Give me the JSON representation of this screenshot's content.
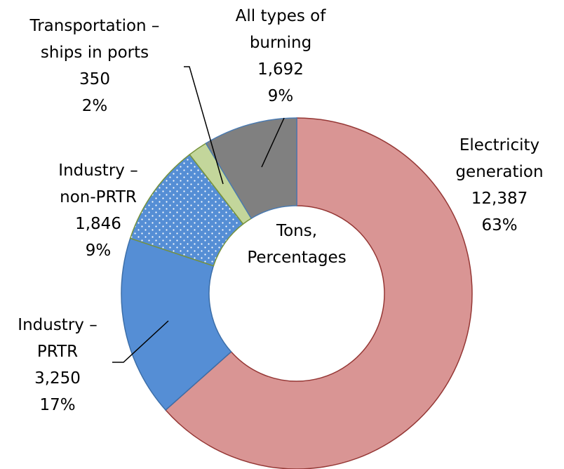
{
  "chart_data": {
    "type": "donut",
    "center_label": "Tons,\nPercentages",
    "categories": [
      "Electricity\ngeneration",
      "Industry –\nPRTR",
      "Industry –\nnon-PRTR",
      "Transportation –\nships in ports",
      "All types of\nburning"
    ],
    "values": [
      12387,
      3250,
      1846,
      350,
      1692
    ],
    "value_labels": [
      "12,387",
      "3,250",
      "1,846",
      "350",
      "1,692"
    ],
    "percent_labels": [
      "63%",
      "17%",
      "9%",
      "2%",
      "9%"
    ],
    "colors": [
      "#d99594",
      "#558ed5",
      "#558ed5",
      "#c3d69b",
      "#808080"
    ],
    "patterns": [
      null,
      null,
      "dots",
      null,
      null
    ]
  }
}
